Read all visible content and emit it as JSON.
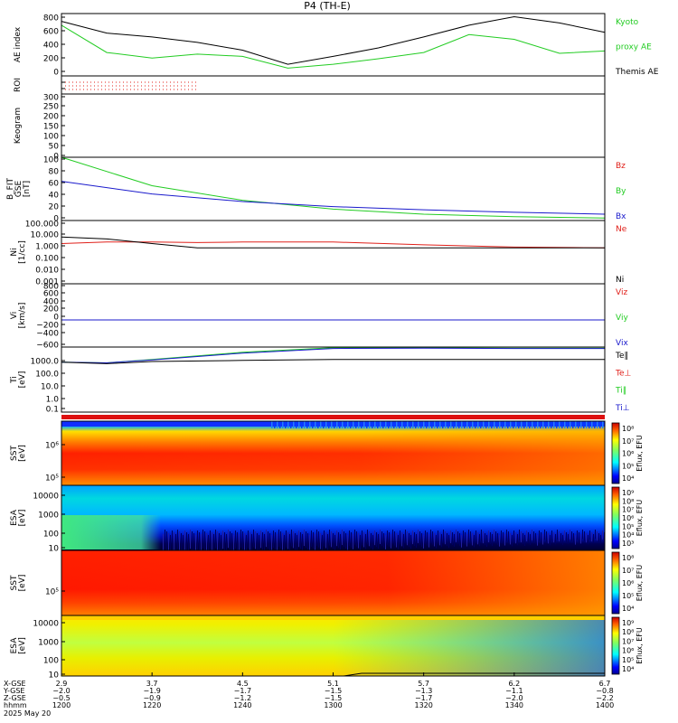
{
  "title": "P4 (TH-E)",
  "date": "2025 May 20",
  "colors": {
    "red": "#e0201a",
    "green": "#22cc22",
    "blue": "#1a1acc",
    "black": "#000000"
  },
  "panels": [
    {
      "id": "ae",
      "ylabel": [
        "AE index"
      ],
      "ticks": [
        "800",
        "600",
        "400",
        "200",
        "0"
      ],
      "legend": [
        {
          "text": "Kyoto",
          "color": "green"
        },
        {
          "text": "proxy AE",
          "color": "green"
        },
        {
          "text": "Themis AE",
          "color": "black"
        }
      ]
    },
    {
      "id": "roi",
      "ylabel": [
        "ROI"
      ],
      "ticks": [
        "",
        ""
      ]
    },
    {
      "id": "keogram",
      "ylabel": [
        "Keogram"
      ],
      "ticks": [
        "300",
        "250",
        "200",
        "150",
        "100",
        "50",
        "0"
      ]
    },
    {
      "id": "bfit",
      "ylabel": [
        "B_FIT",
        "GSE",
        "[nT]"
      ],
      "ticks": [
        "100",
        "80",
        "60",
        "40",
        "20",
        "0"
      ],
      "legend": [
        {
          "text": "Bz",
          "color": "red"
        },
        {
          "text": "By",
          "color": "green"
        },
        {
          "text": "Bx",
          "color": "blue"
        }
      ]
    },
    {
      "id": "ni",
      "ylabel": [
        "Ni",
        "[1/cc]"
      ],
      "ticks": [
        "100.000",
        "10.000",
        "1.000",
        "0.100",
        "0.010",
        "0.001"
      ],
      "legend": [
        {
          "text": "Ne",
          "color": "red"
        },
        {
          "text": "Ni",
          "color": "black"
        }
      ]
    },
    {
      "id": "vi",
      "ylabel": [
        "Vi",
        "[km/s]"
      ],
      "ticks": [
        "800",
        "600",
        "400",
        "200",
        "0",
        "−200",
        "−400",
        "−600"
      ],
      "legend": [
        {
          "text": "Viz",
          "color": "red"
        },
        {
          "text": "Viy",
          "color": "green"
        },
        {
          "text": "Vix",
          "color": "blue"
        }
      ]
    },
    {
      "id": "ti",
      "ylabel": [
        "Ti",
        "[eV]"
      ],
      "ticks": [
        "1000.0",
        "100.0",
        "10.0",
        "1.0",
        "0.1"
      ],
      "legend": [
        {
          "text": "Te‖",
          "color": "black"
        },
        {
          "text": "Te⊥",
          "color": "red"
        },
        {
          "text": "Ti‖",
          "color": "green"
        },
        {
          "text": "Ti⊥",
          "color": "blue"
        }
      ]
    },
    {
      "id": "sst_e",
      "ylabel": [
        "SST",
        "[eV]"
      ],
      "ticks": [
        "10⁶",
        "10⁵"
      ]
    },
    {
      "id": "esa_e",
      "ylabel": [
        "ESA",
        "[eV]"
      ],
      "ticks": [
        "10000",
        "1000",
        "100",
        "10"
      ]
    },
    {
      "id": "sst_i",
      "ylabel": [
        "SST",
        "[eV]"
      ],
      "ticks": [
        "10⁵"
      ]
    },
    {
      "id": "esa_i",
      "ylabel": [
        "ESA",
        "[eV]"
      ],
      "ticks": [
        "10000",
        "1000",
        "100",
        "10"
      ]
    }
  ],
  "colorbars": [
    {
      "id": "cb1",
      "label": "Eflux, EFU",
      "ticks": [
        "10⁸",
        "10⁷",
        "10⁶",
        "10⁵",
        "10⁴"
      ]
    },
    {
      "id": "cb2",
      "label": "Eflux, EFU",
      "ticks": [
        "10⁹",
        "10⁸",
        "10⁷",
        "10⁶",
        "10⁵",
        "10⁴",
        "10³"
      ]
    },
    {
      "id": "cb3",
      "label": "Eflux, EFU",
      "ticks": [
        "10⁸",
        "10⁷",
        "10⁶",
        "10⁵",
        "10⁴"
      ]
    },
    {
      "id": "cb4",
      "label": "Eflux, EFU",
      "ticks": [
        "10⁹",
        "10⁸",
        "10⁷",
        "10⁶",
        "10⁵",
        "10⁴"
      ]
    }
  ],
  "xaxis": {
    "row_labels": [
      "X-GSE",
      "Y-GSE",
      "Z-GSE",
      "hhmm"
    ],
    "columns": [
      {
        "x": "2.9",
        "y": "−2.0",
        "z": "−0.5",
        "t": "1200"
      },
      {
        "x": "3.7",
        "y": "−1.9",
        "z": "−0.9",
        "t": "1220"
      },
      {
        "x": "4.5",
        "y": "−1.7",
        "z": "−1.2",
        "t": "1240"
      },
      {
        "x": "5.1",
        "y": "−1.5",
        "z": "−1.5",
        "t": "1300"
      },
      {
        "x": "5.7",
        "y": "−1.3",
        "z": "−1.7",
        "t": "1320"
      },
      {
        "x": "6.2",
        "y": "−1.1",
        "z": "−2.0",
        "t": "1340"
      },
      {
        "x": "6.7",
        "y": "−0.8",
        "z": "−2.2",
        "t": "1400"
      }
    ]
  },
  "chart_data": [
    {
      "type": "line",
      "title": "AE index",
      "xlabel": "hhmm",
      "x": [
        "1200",
        "1210",
        "1220",
        "1230",
        "1240",
        "1250",
        "1300",
        "1310",
        "1320",
        "1330",
        "1340",
        "1350",
        "1400"
      ],
      "series": [
        {
          "name": "Themis AE",
          "color": "black",
          "values": [
            700,
            550,
            500,
            430,
            330,
            150,
            250,
            360,
            500,
            650,
            760,
            680,
            560
          ]
        },
        {
          "name": "Kyoto proxy AE",
          "color": "green",
          "values": [
            650,
            300,
            230,
            280,
            250,
            100,
            150,
            220,
            300,
            530,
            470,
            290,
            320
          ]
        }
      ],
      "ylim": [
        0,
        800
      ]
    },
    {
      "type": "line",
      "title": "B_FIT GSE [nT]",
      "x": [
        "1200",
        "1220",
        "1240",
        "1300",
        "1320",
        "1340",
        "1400"
      ],
      "series": [
        {
          "name": "By",
          "color": "green",
          "values": [
            100,
            55,
            32,
            18,
            10,
            6,
            4
          ]
        },
        {
          "name": "Bx",
          "color": "blue",
          "values": [
            62,
            42,
            30,
            22,
            17,
            13,
            10
          ]
        }
      ],
      "ylim": [
        0,
        100
      ]
    },
    {
      "type": "line",
      "title": "Ni [1/cc]",
      "x": [
        "1200",
        "1210",
        "1220",
        "1230",
        "1240",
        "1300",
        "1320",
        "1340",
        "1400"
      ],
      "series": [
        {
          "name": "Ne",
          "color": "red",
          "values": [
            1.5,
            2.0,
            2.0,
            1.8,
            2.0,
            2.0,
            1.2,
            0.8,
            0.7
          ]
        },
        {
          "name": "Ni",
          "color": "black",
          "values": [
            5.0,
            3.5,
            1.5,
            0.7,
            0.7,
            0.7,
            0.7,
            0.7,
            0.7
          ]
        }
      ],
      "ylim": [
        0.001,
        100
      ],
      "scale": "log"
    },
    {
      "type": "line",
      "title": "Vi [km/s]",
      "x": [
        "1200",
        "1400"
      ],
      "series": [
        {
          "name": "Viz",
          "color": "red",
          "values": [
            0,
            0
          ]
        },
        {
          "name": "Viy",
          "color": "green",
          "values": [
            0,
            0
          ]
        },
        {
          "name": "Vix",
          "color": "blue",
          "values": [
            0,
            0
          ]
        }
      ],
      "ylim": [
        -600,
        800
      ]
    },
    {
      "type": "line",
      "title": "Ti [eV]",
      "x": [
        "1200",
        "1210",
        "1220",
        "1240",
        "1300",
        "1320",
        "1340",
        "1400"
      ],
      "series": [
        {
          "name": "Ti‖",
          "color": "green",
          "values": [
            200,
            180,
            300,
            900,
            1800,
            1800,
            1700,
            1700
          ]
        },
        {
          "name": "Ti⊥",
          "color": "blue",
          "values": [
            200,
            180,
            280,
            800,
            1600,
            1700,
            1600,
            1600
          ]
        },
        {
          "name": "Te‖",
          "color": "black",
          "values": [
            200,
            160,
            220,
            260,
            300,
            300,
            300,
            300
          ]
        }
      ],
      "ylim": [
        0.1,
        2000
      ],
      "scale": "log"
    },
    {
      "type": "heatmap",
      "title": "SST [eV]",
      "xlabel": "hhmm",
      "ylim_label": [
        "10⁵",
        "10⁶"
      ]
    },
    {
      "type": "heatmap",
      "title": "ESA [eV]",
      "ylim": [
        10,
        10000
      ]
    },
    {
      "type": "heatmap",
      "title": "SST [eV]",
      "ylim_label": [
        "10⁵"
      ]
    },
    {
      "type": "heatmap",
      "title": "ESA [eV]",
      "ylim": [
        10,
        10000
      ]
    }
  ]
}
